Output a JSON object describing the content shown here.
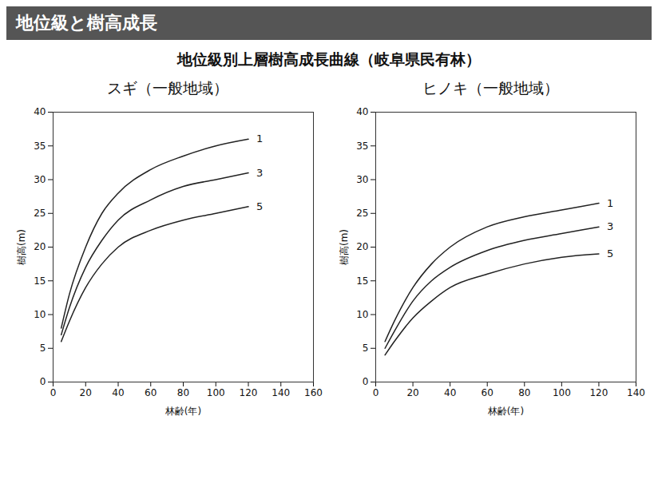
{
  "header": "地位級と樹高成長",
  "title": "地位級別上層樹高成長曲線（岐阜県民有林）",
  "chart_data": [
    {
      "type": "line",
      "title": "スギ（一般地域）",
      "x_label": "林齢(年)",
      "y_label": "樹高(m)",
      "x": [
        5,
        10,
        20,
        30,
        40,
        60,
        80,
        100,
        120
      ],
      "series": [
        {
          "name": "1",
          "color": "#222222",
          "values": [
            8,
            13,
            20,
            25,
            28,
            31.5,
            33.5,
            35,
            36
          ]
        },
        {
          "name": "3",
          "color": "#222222",
          "values": [
            7,
            11,
            17,
            21,
            24,
            27,
            29,
            30,
            31
          ]
        },
        {
          "name": "5",
          "color": "#222222",
          "values": [
            6,
            9,
            14,
            17.5,
            20,
            22.5,
            24,
            25,
            26
          ]
        }
      ],
      "xlim": [
        0,
        160
      ],
      "xticks": [
        0,
        20,
        40,
        60,
        80,
        100,
        120,
        140,
        160
      ],
      "ylim": [
        0,
        40
      ],
      "yticks": [
        0,
        5,
        10,
        15,
        20,
        25,
        30,
        35,
        40
      ]
    },
    {
      "type": "line",
      "title": "ヒノキ（一般地域）",
      "x_label": "林齢(年)",
      "y_label": "樹高(m)",
      "x": [
        5,
        10,
        20,
        30,
        40,
        60,
        80,
        100,
        120
      ],
      "series": [
        {
          "name": "1",
          "color": "#222222",
          "values": [
            6,
            9,
            14,
            17.5,
            20,
            23,
            24.5,
            25.5,
            26.5
          ]
        },
        {
          "name": "3",
          "color": "#222222",
          "values": [
            5,
            7.5,
            12,
            15,
            17,
            19.5,
            21,
            22,
            23
          ]
        },
        {
          "name": "5",
          "color": "#222222",
          "values": [
            4,
            6,
            9.5,
            12,
            14,
            16,
            17.5,
            18.5,
            19
          ]
        }
      ],
      "xlim": [
        0,
        140
      ],
      "xticks": [
        0,
        20,
        40,
        60,
        80,
        100,
        120,
        140
      ],
      "ylim": [
        0,
        40
      ],
      "yticks": [
        0,
        5,
        10,
        15,
        20,
        25,
        30,
        35,
        40
      ]
    }
  ]
}
